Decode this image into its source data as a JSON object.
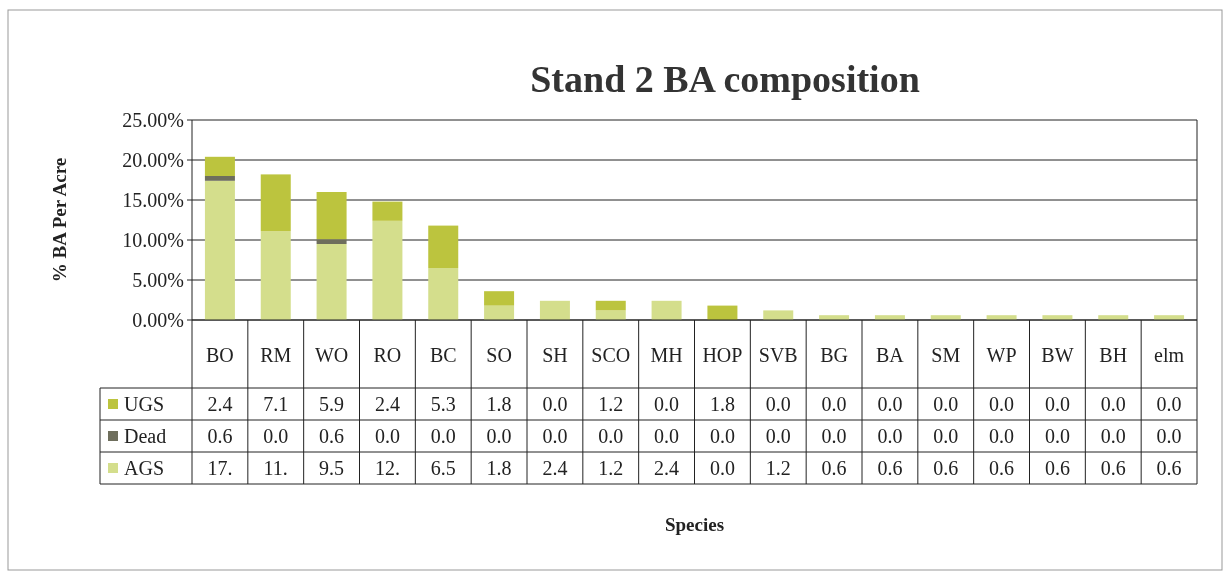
{
  "chart_data": {
    "type": "bar",
    "title": "Stand 2 BA composition",
    "annotations": [
      "Species"
    ],
    "ylabel": "% BA Per Acre",
    "stacked": true,
    "categories": [
      "BO",
      "RM",
      "WO",
      "RO",
      "BC",
      "SO",
      "SH",
      "SCO",
      "MH",
      "HOP",
      "SVB",
      "BG",
      "BA",
      "SM",
      "WP",
      "BW",
      "BH",
      "elm"
    ],
    "series": [
      {
        "name": "AGS",
        "color": "#d4de8c",
        "values": [
          17.4,
          11.1,
          9.5,
          12.4,
          6.5,
          1.8,
          2.4,
          1.2,
          2.4,
          0.0,
          1.2,
          0.6,
          0.6,
          0.6,
          0.6,
          0.6,
          0.6,
          0.6
        ],
        "value_labels": [
          "17.",
          "11.",
          "9.5",
          "12.",
          "6.5",
          "1.8",
          "2.4",
          "1.2",
          "2.4",
          "0.0",
          "1.2",
          "0.6",
          "0.6",
          "0.6",
          "0.6",
          "0.6",
          "0.6",
          "0.6"
        ]
      },
      {
        "name": "Dead",
        "color": "#6e6e5c",
        "values": [
          0.6,
          0,
          0.6,
          0,
          0,
          0,
          0,
          0,
          0,
          0,
          0,
          0,
          0,
          0,
          0,
          0,
          0,
          0
        ],
        "value_labels": [
          "0.6",
          "0.0",
          "0.6",
          "0.0",
          "0.0",
          "0.0",
          "0.0",
          "0.0",
          "0.0",
          "0.0",
          "0.0",
          "0.0",
          "0.0",
          "0.0",
          "0.0",
          "0.0",
          "0.0",
          "0.0"
        ]
      },
      {
        "name": "UGS",
        "color": "#bcc43e",
        "values": [
          2.4,
          7.1,
          5.9,
          2.4,
          5.3,
          1.8,
          0,
          1.2,
          0,
          1.8,
          0,
          0,
          0,
          0,
          0,
          0,
          0,
          0
        ],
        "value_labels": [
          "2.4",
          "7.1",
          "5.9",
          "2.4",
          "5.3",
          "1.8",
          "0.0",
          "1.2",
          "0.0",
          "1.8",
          "0.0",
          "0.0",
          "0.0",
          "0.0",
          "0.0",
          "0.0",
          "0.0",
          "0.0"
        ]
      }
    ],
    "ylim": [
      0,
      25
    ],
    "yticks": [
      {
        "value": 0,
        "label": "0.00%"
      },
      {
        "value": 5,
        "label": "5.00%"
      },
      {
        "value": 10,
        "label": "10.00%"
      },
      {
        "value": 15,
        "label": "15.00%"
      },
      {
        "value": 20,
        "label": "20.00%"
      },
      {
        "value": 25,
        "label": "25.00%"
      }
    ],
    "grid": "y",
    "legend": "bottom"
  }
}
